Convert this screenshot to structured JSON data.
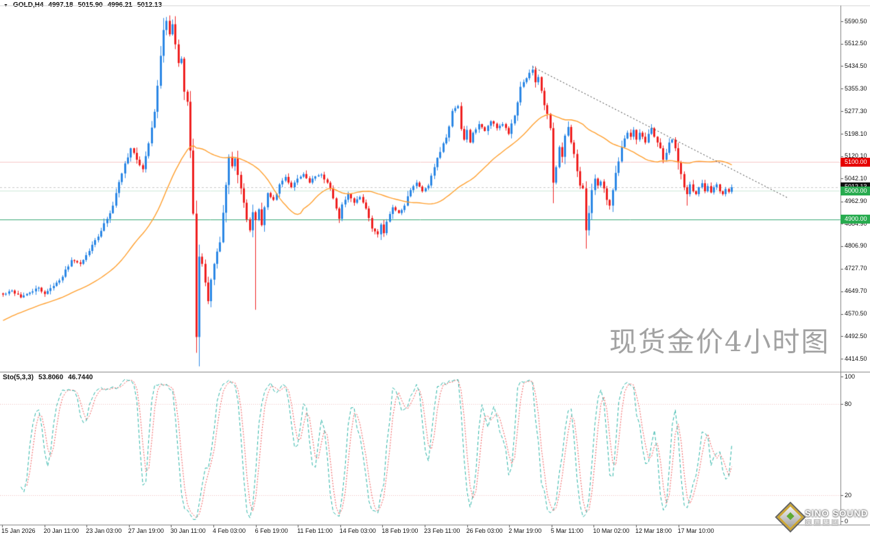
{
  "header": {
    "symbol": "GOLD,H4",
    "open": "4997.18",
    "high": "5015.90",
    "low": "4996.21",
    "close": "5012.13"
  },
  "icons": {
    "symbol_dropdown": "▼"
  },
  "watermark": "现货金价4小时图",
  "indicator": {
    "name": "Sto(5,3,3)",
    "k_value": "53.8060",
    "d_value": "46.7440"
  },
  "price_axis": {
    "ticks": [
      "5590.50",
      "5512.50",
      "5434.50",
      "5355.30",
      "5277.30",
      "5198.10",
      "5120.10",
      "5042.10",
      "4962.90",
      "4884.90",
      "4806.90",
      "4727.70",
      "4649.70",
      "4570.50",
      "4492.50",
      "4414.50"
    ]
  },
  "stoch_axis": {
    "ticks": [
      "100",
      "80",
      "20",
      "0"
    ]
  },
  "time_axis": {
    "labels": [
      "15 Jan 2026",
      "20 Jan 11:00",
      "23 Jan 03:00",
      "27 Jan 19:00",
      "30 Jan 11:00",
      "4 Feb 03:00",
      "6 Feb 19:00",
      "11 Feb 11:00",
      "14 Feb 03:00",
      "18 Feb 19:00",
      "23 Feb 11:00",
      "26 Feb 03:00",
      "2 Mar 19:00",
      "5 Mar 11:00",
      "10 Mar 02:00",
      "12 Mar 18:00",
      "17 Mar 10:00"
    ]
  },
  "logo": {
    "title": "SINO SOUND",
    "subtitle_chars": [
      "汉",
      "声",
      "集",
      "团"
    ]
  },
  "chart_data": {
    "type": "candlestick",
    "symbol": "GOLD",
    "timeframe": "H4",
    "bars": 246,
    "price_axis_ticks": [
      5590.5,
      5512.5,
      5434.5,
      5355.3,
      5277.3,
      5198.1,
      5120.1,
      5042.1,
      4962.9,
      4884.9,
      4806.9,
      4727.7,
      4649.7,
      4570.5,
      4492.5,
      4414.5
    ],
    "last_ohlc": {
      "open": 4997.18,
      "high": 5015.9,
      "low": 4996.21,
      "close": 5012.13
    },
    "close_path_waypoints": [
      [
        0,
        4638
      ],
      [
        3,
        4652
      ],
      [
        6,
        4628
      ],
      [
        9,
        4645
      ],
      [
        12,
        4662
      ],
      [
        14,
        4640
      ],
      [
        17,
        4668
      ],
      [
        20,
        4700
      ],
      [
        23,
        4758
      ],
      [
        26,
        4745
      ],
      [
        29,
        4790
      ],
      [
        32,
        4840
      ],
      [
        35,
        4902
      ],
      [
        37,
        4948
      ],
      [
        39,
        5030
      ],
      [
        41,
        5095
      ],
      [
        43,
        5148
      ],
      [
        45,
        5108
      ],
      [
        47,
        5075
      ],
      [
        49,
        5165
      ],
      [
        51,
        5275
      ],
      [
        53,
        5470
      ],
      [
        54,
        5560
      ],
      [
        55,
        5592
      ],
      [
        56,
        5545
      ],
      [
        57,
        5580
      ],
      [
        58,
        5510
      ],
      [
        59,
        5445
      ],
      [
        60,
        5460
      ],
      [
        61,
        5345
      ],
      [
        62,
        5310
      ],
      [
        63,
        5140
      ],
      [
        64,
        4920
      ],
      [
        65,
        4490
      ],
      [
        66,
        4770
      ],
      [
        67,
        4745
      ],
      [
        68,
        4680
      ],
      [
        69,
        4615
      ],
      [
        70,
        4690
      ],
      [
        71,
        4745
      ],
      [
        73,
        4820
      ],
      [
        75,
        5020
      ],
      [
        76,
        5118
      ],
      [
        77,
        5085
      ],
      [
        78,
        5112
      ],
      [
        79,
        5055
      ],
      [
        80,
        5008
      ],
      [
        81,
        4958
      ],
      [
        82,
        4900
      ],
      [
        83,
        4862
      ],
      [
        84,
        4925
      ],
      [
        85,
        4898
      ],
      [
        86,
        4935
      ],
      [
        87,
        4880
      ],
      [
        88,
        4942
      ],
      [
        89,
        4992
      ],
      [
        91,
        4968
      ],
      [
        93,
        5022
      ],
      [
        95,
        5048
      ],
      [
        97,
        5012
      ],
      [
        99,
        5042
      ],
      [
        101,
        5058
      ],
      [
        103,
        5028
      ],
      [
        105,
        5050
      ],
      [
        107,
        5056
      ],
      [
        109,
        5028
      ],
      [
        110,
        5008
      ],
      [
        112,
        4938
      ],
      [
        113,
        4902
      ],
      [
        114,
        4952
      ],
      [
        116,
        4988
      ],
      [
        118,
        4958
      ],
      [
        120,
        4978
      ],
      [
        122,
        4938
      ],
      [
        124,
        4868
      ],
      [
        126,
        4848
      ],
      [
        127,
        4882
      ],
      [
        128,
        4852
      ],
      [
        129,
        4892
      ],
      [
        131,
        4942
      ],
      [
        133,
        4922
      ],
      [
        135,
        4948
      ],
      [
        137,
        5002
      ],
      [
        139,
        5028
      ],
      [
        141,
        4998
      ],
      [
        143,
        5018
      ],
      [
        145,
        5082
      ],
      [
        147,
        5135
      ],
      [
        149,
        5185
      ],
      [
        151,
        5278
      ],
      [
        153,
        5295
      ],
      [
        154,
        5215
      ],
      [
        155,
        5178
      ],
      [
        156,
        5212
      ],
      [
        157,
        5168
      ],
      [
        158,
        5202
      ],
      [
        160,
        5232
      ],
      [
        162,
        5208
      ],
      [
        164,
        5242
      ],
      [
        166,
        5218
      ],
      [
        168,
        5232
      ],
      [
        170,
        5198
      ],
      [
        172,
        5262
      ],
      [
        174,
        5362
      ],
      [
        176,
        5392
      ],
      [
        178,
        5422
      ],
      [
        179,
        5378
      ],
      [
        180,
        5396
      ],
      [
        181,
        5348
      ],
      [
        182,
        5298
      ],
      [
        183,
        5268
      ],
      [
        184,
        5218
      ],
      [
        185,
        5028
      ],
      [
        186,
        5082
      ],
      [
        187,
        5152
      ],
      [
        188,
        5118
      ],
      [
        189,
        5192
      ],
      [
        190,
        5222
      ],
      [
        191,
        5168
      ],
      [
        192,
        5128
      ],
      [
        193,
        5068
      ],
      [
        194,
        5018
      ],
      [
        195,
        5008
      ],
      [
        196,
        4862
      ],
      [
        197,
        4922
      ],
      [
        198,
        5002
      ],
      [
        199,
        5042
      ],
      [
        200,
        5018
      ],
      [
        201,
        5032
      ],
      [
        202,
        5008
      ],
      [
        203,
        4968
      ],
      [
        204,
        4948
      ],
      [
        205,
        5002
      ],
      [
        206,
        5062
      ],
      [
        207,
        5102
      ],
      [
        208,
        5152
      ],
      [
        209,
        5182
      ],
      [
        210,
        5202
      ],
      [
        211,
        5188
      ],
      [
        212,
        5212
      ],
      [
        213,
        5178
      ],
      [
        214,
        5202
      ],
      [
        215,
        5188
      ],
      [
        216,
        5168
      ],
      [
        217,
        5198
      ],
      [
        218,
        5218
      ],
      [
        219,
        5188
      ],
      [
        220,
        5168
      ],
      [
        221,
        5148
      ],
      [
        222,
        5108
      ],
      [
        223,
        5132
      ],
      [
        224,
        5168
      ],
      [
        225,
        5178
      ],
      [
        226,
        5148
      ],
      [
        227,
        5098
      ],
      [
        228,
        5058
      ],
      [
        229,
        5012
      ],
      [
        230,
        4988
      ],
      [
        231,
        5022
      ],
      [
        232,
        4998
      ],
      [
        233,
        4988
      ],
      [
        234,
        5012
      ],
      [
        235,
        5026
      ],
      [
        236,
        4998
      ],
      [
        237,
        5016
      ],
      [
        238,
        4994
      ],
      [
        239,
        5012
      ],
      [
        240,
        5022
      ],
      [
        241,
        4998
      ],
      [
        242,
        4988
      ],
      [
        243,
        5006
      ],
      [
        244,
        4996
      ],
      [
        245,
        5012.13
      ]
    ],
    "wick_overrides": {
      "54": {
        "high": 5602
      },
      "65": {
        "low": 4435
      },
      "85": {
        "low": 4585
      },
      "178": {
        "high": 5436
      },
      "196": {
        "low": 4798
      },
      "230": {
        "low": 4948
      }
    },
    "moving_average": {
      "type": "SMA",
      "period": 36,
      "color": "#ff9f2e"
    },
    "horizontal_levels": [
      {
        "price": 5100.0,
        "label": "5100.00",
        "line_color": "#f6c9c9",
        "dashed": false,
        "badge_bg": "#e60000"
      },
      {
        "price": 5012.13,
        "label": "5012.13",
        "line_color": "#c9c9c9",
        "dashed": true,
        "badge_bg": "#101010"
      },
      {
        "price": 5000.0,
        "label": "5000.00",
        "line_color": "#cde9da",
        "dashed": false,
        "badge_bg": "#28ab4f"
      },
      {
        "price": 4900.0,
        "label": "4900.00",
        "line_color": "#3aa876",
        "dashed": false,
        "badge_bg": "#28ab4f"
      }
    ],
    "trendline": {
      "from_bar": 178,
      "from_price": 5432,
      "to_bar": 264,
      "to_price": 4974,
      "color": "#3c3c3c",
      "dashed": true
    },
    "stochastic": {
      "k_period": 5,
      "d_period": 3,
      "slowing": 3,
      "levels": [
        80,
        20
      ],
      "level_color": "#eebcbc",
      "k_color": "#2ab3a6",
      "d_color": "#f05555",
      "last_k": 53.806,
      "last_d": 46.744,
      "scale": [
        0,
        100
      ]
    },
    "colors": {
      "up": "#2b87e5",
      "down": "#ef2020",
      "background": "#ffffff"
    }
  }
}
